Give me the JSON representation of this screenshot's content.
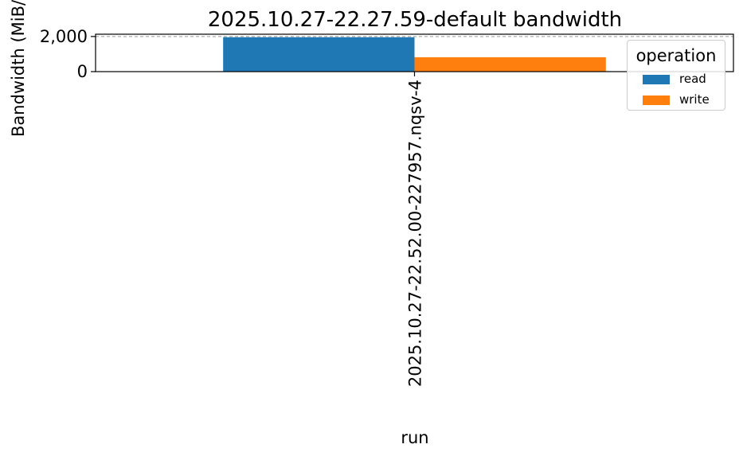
{
  "chart_data": {
    "type": "bar",
    "title": "2025.10.27-22.27.59-default bandwidth",
    "xlabel": "run",
    "ylabel": "Bandwidth (MiB/s)",
    "categories": [
      "2025.10.27-22.52.00-227957.nqsv-4"
    ],
    "series": [
      {
        "name": "read",
        "values": [
          1960
        ],
        "color": "#1f77b4"
      },
      {
        "name": "write",
        "values": [
          820
        ],
        "color": "#ff7f0e"
      }
    ],
    "ylim": [
      0,
      2130
    ],
    "yticks": [
      0,
      2000
    ],
    "ytick_labels": [
      "0",
      "2,000"
    ],
    "grid": "horizontal dashed",
    "legend": {
      "title": "operation",
      "placement": "upper-right"
    }
  }
}
